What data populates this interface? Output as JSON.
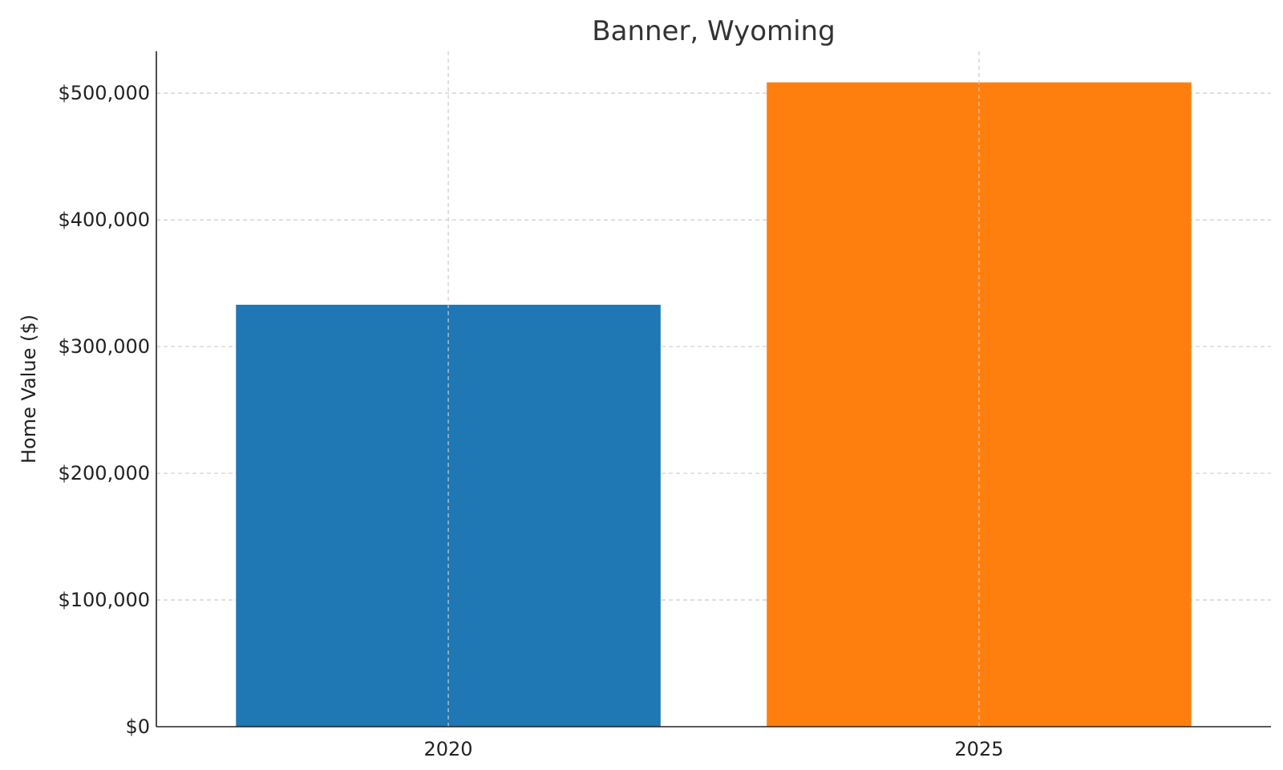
{
  "chart_data": {
    "type": "bar",
    "title": "Banner, Wyoming",
    "xlabel": "",
    "ylabel": "Home Value ($)",
    "categories": [
      "2020",
      "2025"
    ],
    "values": [
      333000,
      508500
    ],
    "colors": [
      "#1f77b4",
      "#ff7f0e"
    ],
    "ylim": [
      0,
      533000
    ],
    "yticks": [
      0,
      100000,
      200000,
      300000,
      400000,
      500000
    ],
    "ytick_labels": [
      "$0",
      "$100,000",
      "$200,000",
      "$300,000",
      "$400,000",
      "$500,000"
    ],
    "grid": true,
    "legend": "none"
  }
}
